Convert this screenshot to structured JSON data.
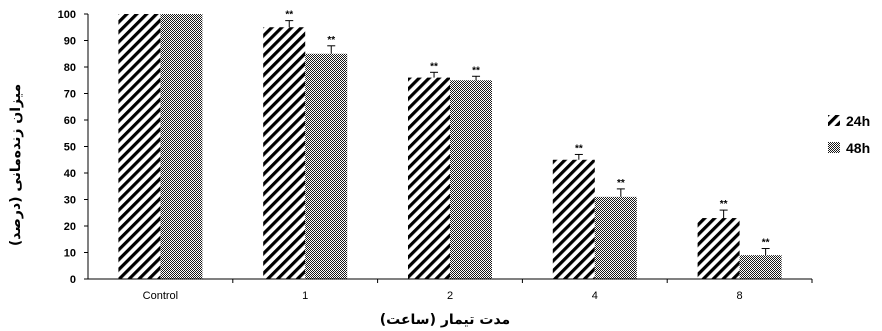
{
  "chart_data": {
    "type": "bar",
    "categories": [
      "Control",
      "1",
      "2",
      "4",
      "8"
    ],
    "series": [
      {
        "name": "24h",
        "values": [
          100,
          95,
          76,
          45,
          23
        ],
        "errors": [
          0,
          2.5,
          2,
          2,
          3
        ],
        "significance": [
          "",
          "**",
          "**",
          "**",
          "**"
        ],
        "pattern": "diagonal-stripes"
      },
      {
        "name": "48h",
        "values": [
          100,
          85,
          75,
          31,
          9
        ],
        "errors": [
          0,
          3,
          1.5,
          3,
          2.5
        ],
        "significance": [
          "",
          "**",
          "**",
          "**",
          "**"
        ],
        "pattern": "dense-checker"
      }
    ],
    "xlabel": "مدت تیمار (ساعت)",
    "ylabel": "میزان زنده‌مانی (درصد)",
    "ylim": [
      0,
      100
    ],
    "yticks": [
      0,
      10,
      20,
      30,
      40,
      50,
      60,
      70,
      80,
      90,
      100
    ],
    "grid": false,
    "legend_position": "right",
    "colors": {
      "bar": "#000000",
      "axis": "#000000",
      "background": "#ffffff"
    }
  }
}
